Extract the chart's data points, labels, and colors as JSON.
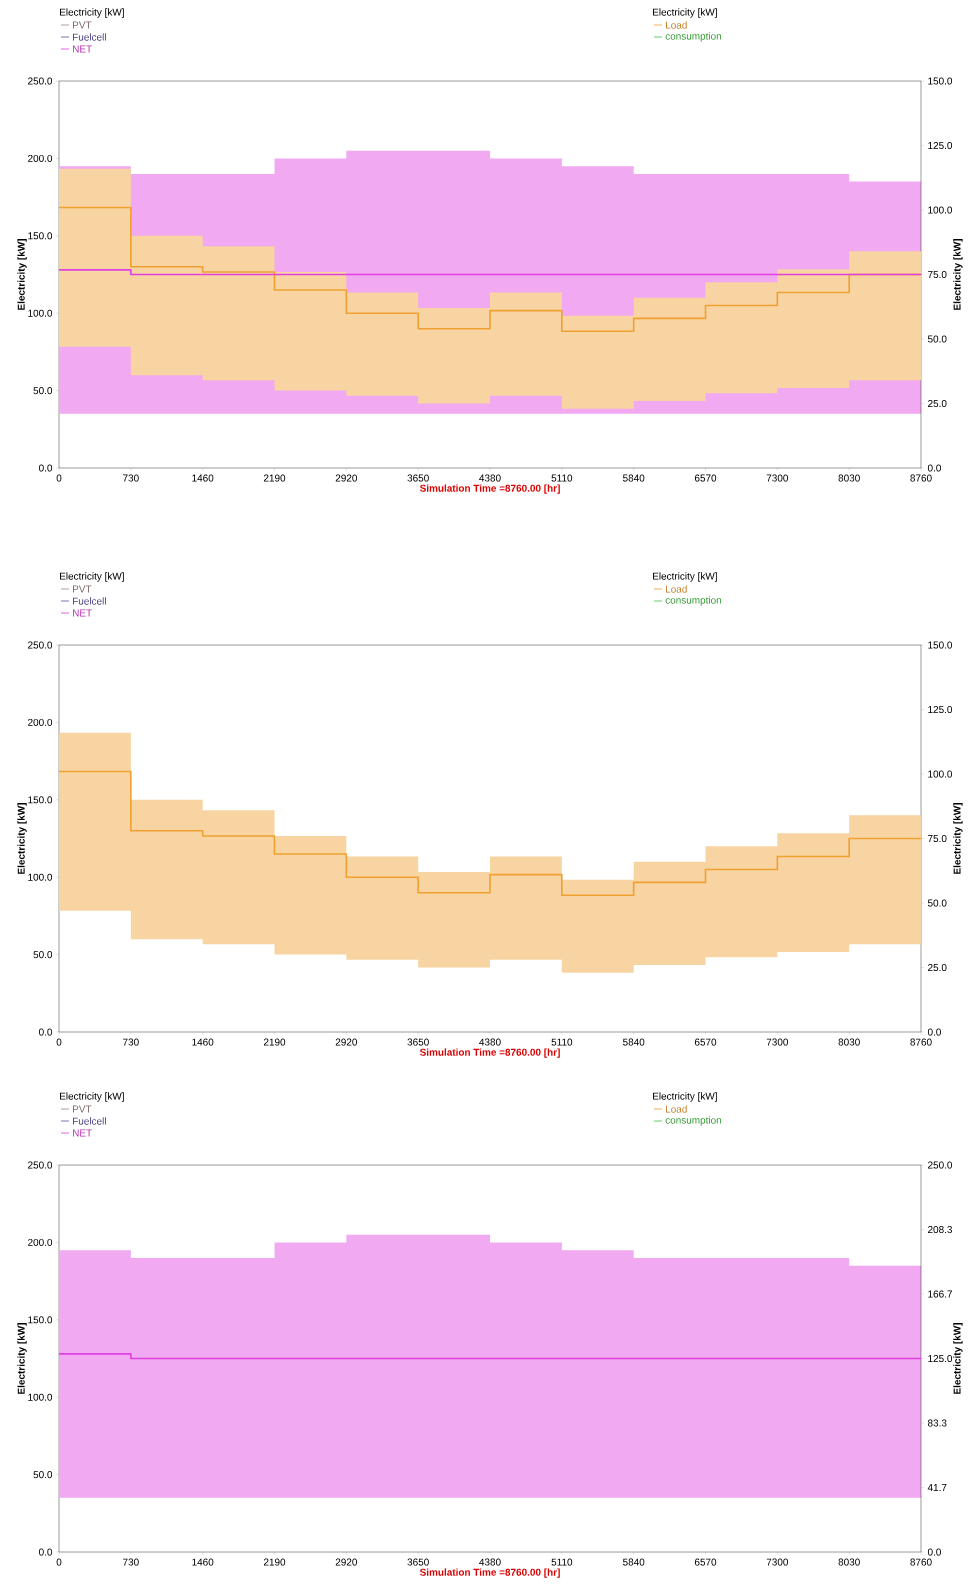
{
  "chart_data": [
    {
      "type": "step",
      "xlabel": "Simulation Time =8760.00 [hr]",
      "ylabel": "Electricity [kW]",
      "y2label": "Electricity [kW]",
      "legend_title": "Electricity [kW]",
      "legend": "top",
      "x": [
        0,
        730,
        1460,
        2190,
        2920,
        3650,
        4380,
        5110,
        5840,
        6570,
        7300,
        8030,
        8760
      ],
      "xlim": [
        0,
        8760
      ],
      "xticks": [
        0,
        730,
        1460,
        2190,
        2920,
        3650,
        4380,
        5110,
        5840,
        6570,
        7300,
        8030,
        8760
      ],
      "ylim": [
        0,
        250
      ],
      "yticks": [
        {
          "value": 0,
          "label": "0.0"
        },
        {
          "value": 50,
          "label": "50.0"
        },
        {
          "value": 100,
          "label": "100.0"
        },
        {
          "value": 150,
          "label": "150.0"
        },
        {
          "value": 200,
          "label": "200.0"
        },
        {
          "value": 250,
          "label": "250.0"
        }
      ],
      "y2lim": [
        0,
        150
      ],
      "y2ticks": [
        {
          "value": 0,
          "label": "0.0"
        },
        {
          "value": 25,
          "label": "25.0"
        },
        {
          "value": 50,
          "label": "50.0"
        },
        {
          "value": 75,
          "label": "75.0"
        },
        {
          "value": 100,
          "label": "100.0"
        },
        {
          "value": 125,
          "label": "125.0"
        },
        {
          "value": 150,
          "label": "150.0"
        }
      ],
      "series": [
        {
          "name": "PVT",
          "color": "#a08080",
          "values": [
            null,
            null,
            null,
            null,
            null,
            null,
            null,
            null,
            null,
            null,
            null,
            null,
            null
          ]
        },
        {
          "name": "Fuelcell",
          "color": "#6050a0",
          "values": [
            null,
            null,
            null,
            null,
            null,
            null,
            null,
            null,
            null,
            null,
            null,
            null,
            null
          ]
        },
        {
          "name": "NET",
          "color": "#e040e0",
          "values": [
            128,
            125,
            125,
            125,
            125,
            125,
            125,
            125,
            125,
            125,
            125,
            125,
            125
          ],
          "lower": [
            35,
            35,
            35,
            35,
            35,
            35,
            35,
            35,
            35,
            35,
            35,
            35,
            35
          ],
          "upper": [
            195,
            190,
            190,
            200,
            205,
            205,
            200,
            195,
            190,
            190,
            190,
            185,
            185
          ]
        },
        {
          "name": "Load",
          "color": "#f0a030",
          "axis": "y2",
          "values": [
            101,
            78,
            76,
            69,
            60,
            54,
            61,
            53,
            58,
            63,
            68,
            75,
            75
          ],
          "lower": [
            47,
            36,
            34,
            30,
            28,
            25,
            28,
            23,
            26,
            29,
            31,
            34,
            34
          ],
          "upper": [
            116,
            90,
            86,
            76,
            68,
            62,
            68,
            59,
            66,
            72,
            77,
            84,
            84
          ]
        },
        {
          "name": "consumption",
          "color": "#40c040",
          "axis": "y2",
          "values": [
            null,
            null,
            null,
            null,
            null,
            null,
            null,
            null,
            null,
            null,
            null,
            null,
            null
          ]
        }
      ]
    },
    {
      "type": "step",
      "xlabel": "Simulation Time =8760.00 [hr]",
      "ylabel": "Electricity [kW]",
      "y2label": "Electricity [kW]",
      "legend_title": "Electricity [kW]",
      "legend": "top",
      "x": [
        0,
        730,
        1460,
        2190,
        2920,
        3650,
        4380,
        5110,
        5840,
        6570,
        7300,
        8030,
        8760
      ],
      "xlim": [
        0,
        8760
      ],
      "xticks": [
        0,
        730,
        1460,
        2190,
        2920,
        3650,
        4380,
        5110,
        5840,
        6570,
        7300,
        8030,
        8760
      ],
      "ylim": [
        0,
        250
      ],
      "yticks": [
        {
          "value": 0,
          "label": "0.0"
        },
        {
          "value": 50,
          "label": "50.0"
        },
        {
          "value": 100,
          "label": "100.0"
        },
        {
          "value": 150,
          "label": "150.0"
        },
        {
          "value": 200,
          "label": "200.0"
        },
        {
          "value": 250,
          "label": "250.0"
        }
      ],
      "y2lim": [
        0,
        150
      ],
      "y2ticks": [
        {
          "value": 0,
          "label": "0.0"
        },
        {
          "value": 25,
          "label": "25.0"
        },
        {
          "value": 50,
          "label": "50.0"
        },
        {
          "value": 75,
          "label": "75.0"
        },
        {
          "value": 100,
          "label": "100.0"
        },
        {
          "value": 125,
          "label": "125.0"
        },
        {
          "value": 150,
          "label": "150.0"
        }
      ],
      "series": [
        {
          "name": "PVT",
          "color": "#a08080",
          "values": [
            null,
            null,
            null,
            null,
            null,
            null,
            null,
            null,
            null,
            null,
            null,
            null,
            null
          ]
        },
        {
          "name": "Fuelcell",
          "color": "#6050a0",
          "values": [
            null,
            null,
            null,
            null,
            null,
            null,
            null,
            null,
            null,
            null,
            null,
            null,
            null
          ]
        },
        {
          "name": "NET",
          "color": "#e040e0",
          "values": [
            null,
            null,
            null,
            null,
            null,
            null,
            null,
            null,
            null,
            null,
            null,
            null,
            null
          ]
        },
        {
          "name": "Load",
          "color": "#f0a030",
          "axis": "y2",
          "values": [
            101,
            78,
            76,
            69,
            60,
            54,
            61,
            53,
            58,
            63,
            68,
            75,
            75
          ],
          "lower": [
            47,
            36,
            34,
            30,
            28,
            25,
            28,
            23,
            26,
            29,
            31,
            34,
            34
          ],
          "upper": [
            116,
            90,
            86,
            76,
            68,
            62,
            68,
            59,
            66,
            72,
            77,
            84,
            84
          ]
        },
        {
          "name": "consumption",
          "color": "#40c040",
          "axis": "y2",
          "values": [
            null,
            null,
            null,
            null,
            null,
            null,
            null,
            null,
            null,
            null,
            null,
            null,
            null
          ]
        }
      ]
    },
    {
      "type": "step",
      "xlabel": "Simulation Time =8760.00 [hr]",
      "ylabel": "Electricity [kW]",
      "y2label": "Electricity [kW]",
      "legend_title": "Electricity [kW]",
      "legend": "top",
      "x": [
        0,
        730,
        1460,
        2190,
        2920,
        3650,
        4380,
        5110,
        5840,
        6570,
        7300,
        8030,
        8760
      ],
      "xlim": [
        0,
        8760
      ],
      "xticks": [
        0,
        730,
        1460,
        2190,
        2920,
        3650,
        4380,
        5110,
        5840,
        6570,
        7300,
        8030,
        8760
      ],
      "ylim": [
        0,
        250
      ],
      "yticks": [
        {
          "value": 0,
          "label": "0.0"
        },
        {
          "value": 50,
          "label": "50.0"
        },
        {
          "value": 100,
          "label": "100.0"
        },
        {
          "value": 150,
          "label": "150.0"
        },
        {
          "value": 200,
          "label": "200.0"
        },
        {
          "value": 250,
          "label": "250.0"
        }
      ],
      "y2lim": [
        0,
        250
      ],
      "y2ticks": [
        {
          "value": 0,
          "label": "0.0"
        },
        {
          "value": 41.667,
          "label": "41.7"
        },
        {
          "value": 83.333,
          "label": "83.3"
        },
        {
          "value": 125,
          "label": "125.0"
        },
        {
          "value": 166.667,
          "label": "166.7"
        },
        {
          "value": 208.333,
          "label": "208.3"
        },
        {
          "value": 250,
          "label": "250.0"
        }
      ],
      "series": [
        {
          "name": "PVT",
          "color": "#a08080",
          "values": [
            null,
            null,
            null,
            null,
            null,
            null,
            null,
            null,
            null,
            null,
            null,
            null,
            null
          ]
        },
        {
          "name": "Fuelcell",
          "color": "#6050a0",
          "values": [
            null,
            null,
            null,
            null,
            null,
            null,
            null,
            null,
            null,
            null,
            null,
            null,
            null
          ]
        },
        {
          "name": "NET",
          "color": "#e040e0",
          "values": [
            128,
            125,
            125,
            125,
            125,
            125,
            125,
            125,
            125,
            125,
            125,
            125,
            125
          ],
          "lower": [
            35,
            35,
            35,
            35,
            35,
            35,
            35,
            35,
            35,
            35,
            35,
            35,
            35
          ],
          "upper": [
            195,
            190,
            190,
            200,
            205,
            205,
            200,
            195,
            190,
            190,
            190,
            185,
            185
          ]
        },
        {
          "name": "Load",
          "color": "#f0a030",
          "axis": "y2",
          "values": [
            null,
            null,
            null,
            null,
            null,
            null,
            null,
            null,
            null,
            null,
            null,
            null,
            null
          ]
        },
        {
          "name": "consumption",
          "color": "#40c040",
          "axis": "y2",
          "values": [
            null,
            null,
            null,
            null,
            null,
            null,
            null,
            null,
            null,
            null,
            null,
            null,
            null
          ]
        }
      ]
    }
  ]
}
